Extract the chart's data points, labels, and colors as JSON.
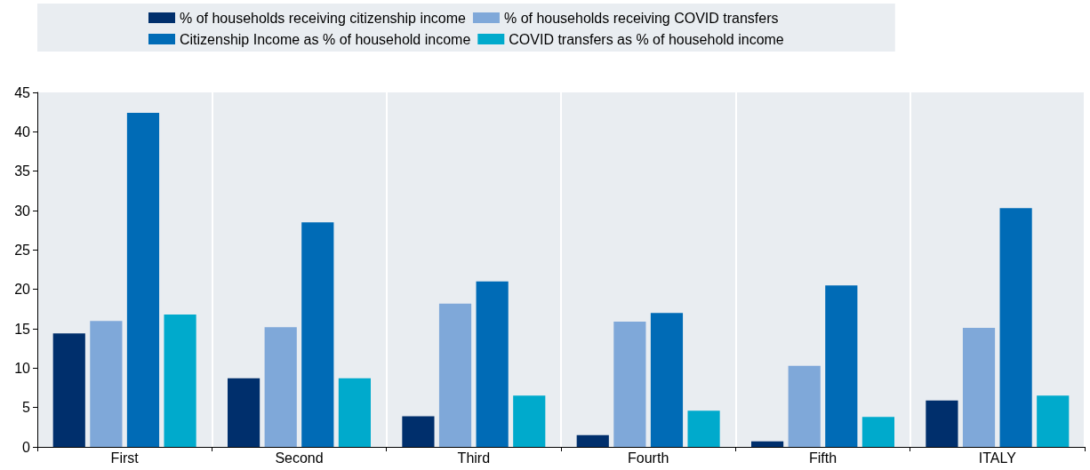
{
  "chart_data": {
    "type": "bar",
    "categories": [
      "First",
      "Second",
      "Third",
      "Fourth",
      "Fifth",
      "ITALY"
    ],
    "series": [
      {
        "name": "% of households receiving citizenship income",
        "color": "#002f6c",
        "values": [
          14.4,
          8.7,
          3.9,
          1.5,
          0.7,
          5.9
        ]
      },
      {
        "name": "% of households receiving COVID transfers",
        "color": "#7fa8d9",
        "values": [
          16.0,
          15.2,
          18.2,
          15.9,
          10.3,
          15.1
        ]
      },
      {
        "name": "Citizenship Income as % of household income",
        "color": "#006bb6",
        "values": [
          42.4,
          28.5,
          21.0,
          17.0,
          20.5,
          30.3
        ]
      },
      {
        "name": "COVID transfers as % of household income",
        "color": "#00aacc",
        "values": [
          16.8,
          8.7,
          6.5,
          4.6,
          3.8,
          6.5
        ]
      }
    ],
    "ylim": [
      0,
      45
    ],
    "yticks": [
      0,
      5,
      10,
      15,
      20,
      25,
      30,
      35,
      40,
      45
    ],
    "grid": "x",
    "legend": "top"
  }
}
